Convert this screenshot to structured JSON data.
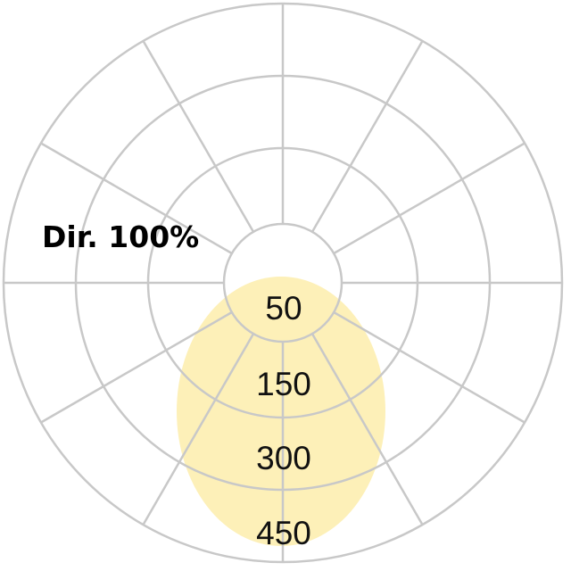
{
  "diagram": {
    "title": "Dir. 100%",
    "ring_labels": [
      "50",
      "150",
      "300",
      "450"
    ],
    "colors": {
      "grid": "#c8c8c8",
      "distribution": "#fdf0b8",
      "text": "#111111"
    }
  }
}
